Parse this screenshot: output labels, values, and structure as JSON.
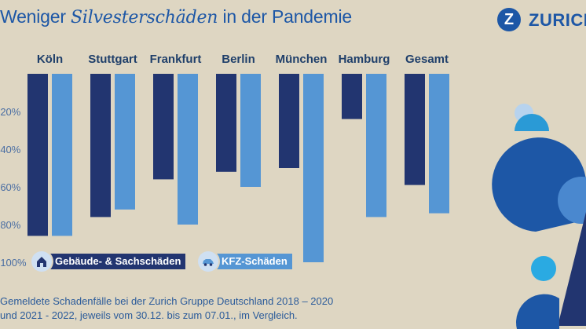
{
  "title": {
    "part1": "Weniger ",
    "part2": "Silvesterschäden",
    "part3": " in der Pandemie"
  },
  "brand": {
    "name": "ZURICH",
    "mark": "Z"
  },
  "colors": {
    "series1": "#223570",
    "series2": "#5596d4",
    "background": "#ded6c2",
    "accent": "#1d57a6"
  },
  "legend": {
    "item1": "Gebäude- & Sachschäden",
    "item2": "KFZ-Schäden",
    "icon1": "house-icon",
    "icon2": "car-icon"
  },
  "footnote": {
    "line1": "Gemeldete Schadenfälle bei der Zurich Gruppe Deutschland 2018 – 2020",
    "line2": "und 2021 - 2022, jeweils vom 30.12. bis zum 07.01., im Vergleich."
  },
  "chart_data": {
    "type": "bar",
    "categories": [
      "Köln",
      "Stuttgart",
      "Frankfurt",
      "Berlin",
      "München",
      "Hamburg",
      "Gesamt"
    ],
    "series": [
      {
        "name": "Gebäude- & Sachschäden",
        "values": [
          -86,
          -76,
          -56,
          -52,
          -50,
          -24,
          -59
        ]
      },
      {
        "name": "KFZ-Schäden",
        "values": [
          -86,
          -72,
          -80,
          -60,
          -100,
          -76,
          -74
        ]
      }
    ],
    "yticks": [
      "-20%",
      "-40%",
      "-60%",
      "-80%",
      "-100%"
    ],
    "ylim": [
      -100,
      0
    ],
    "grid": false,
    "legend_position": "bottom-left"
  }
}
